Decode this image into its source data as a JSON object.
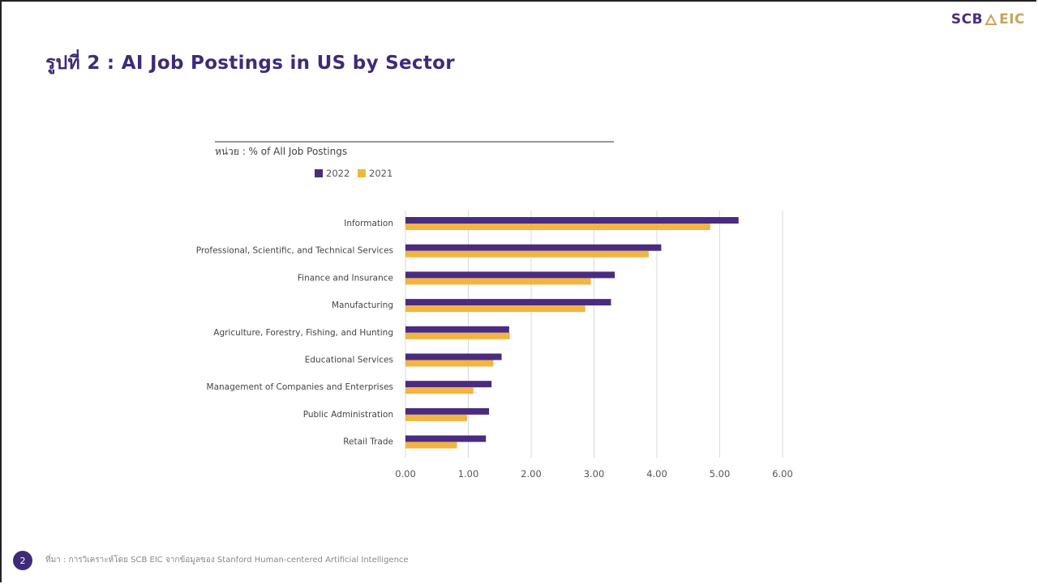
{
  "logo": {
    "scb": "SCB",
    "eic": "EIC"
  },
  "title": "รูปที่ 2 : AI Job Postings in US by Sector",
  "footer": {
    "page_number": "2",
    "source": "ที่มา : การวิเคราะห์โดย SCB EIC จากข้อมูลของ Stanford Human-centered Artificial Intelligence"
  },
  "chart_data": {
    "type": "bar",
    "orientation": "horizontal",
    "unit_label": "หน่วย : % of All Job Postings",
    "categories": [
      "Information",
      "Professional, Scientific, and Technical Services",
      "Finance and Insurance",
      "Manufacturing",
      "Agriculture, Forestry, Fishing, and Hunting",
      "Educational Services",
      "Management of Companies and Enterprises",
      "Public Administration",
      "Retail Trade"
    ],
    "series": [
      {
        "name": "2022",
        "color": "#4b2b7f",
        "values": [
          5.3,
          4.07,
          3.33,
          3.27,
          1.65,
          1.53,
          1.37,
          1.33,
          1.28
        ]
      },
      {
        "name": "2021",
        "color": "#f2b442",
        "values": [
          4.85,
          3.87,
          2.95,
          2.86,
          1.66,
          1.4,
          1.08,
          0.98,
          0.82
        ]
      }
    ],
    "xlim": [
      0,
      6
    ],
    "xticks": [
      "0.00",
      "1.00",
      "2.00",
      "3.00",
      "4.00",
      "5.00",
      "6.00"
    ],
    "grid": "vertical",
    "legend": "top"
  }
}
